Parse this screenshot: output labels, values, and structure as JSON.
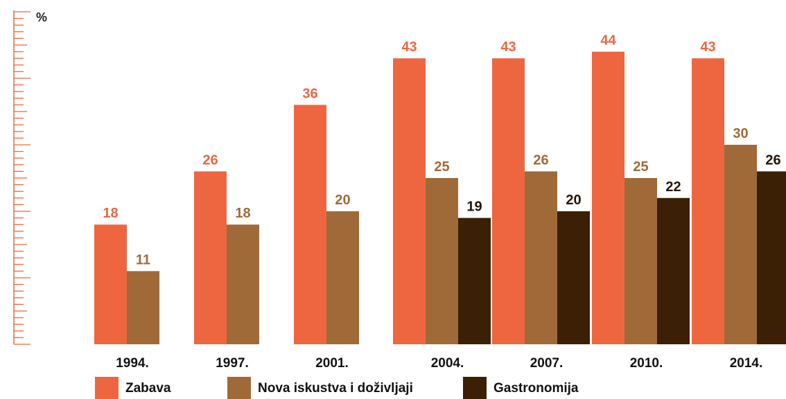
{
  "chart_data": {
    "type": "bar",
    "ylabel": "%",
    "ylim": [
      0,
      50
    ],
    "grid": false,
    "legend_position": "bottom",
    "categories": [
      "1994.",
      "1997.",
      "2001.",
      "2004.",
      "2007.",
      "2010.",
      "2014."
    ],
    "series": [
      {
        "name": "Zabava",
        "color": "#ee6640",
        "label_color": "#ee6640",
        "values": [
          18,
          26,
          36,
          43,
          43,
          44,
          43
        ]
      },
      {
        "name": "Nova iskustva i doživljaji",
        "color": "#a06a38",
        "label_color": "#a06a38",
        "values": [
          11,
          18,
          20,
          25,
          26,
          25,
          30
        ]
      },
      {
        "name": "Gastronomija",
        "color": "#3b2005",
        "label_color": "#231406",
        "values": [
          null,
          null,
          null,
          19,
          20,
          22,
          26
        ]
      }
    ]
  }
}
